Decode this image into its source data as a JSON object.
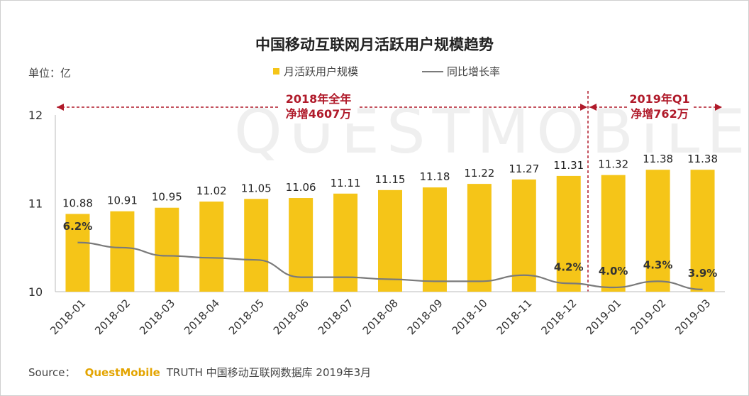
{
  "chart_data": {
    "type": "bar",
    "title": "中国移动互联网月活跃用户规模趋势",
    "unit_label": "单位：亿",
    "categories": [
      "2018-01",
      "2018-02",
      "2018-03",
      "2018-04",
      "2018-05",
      "2018-06",
      "2018-07",
      "2018-08",
      "2018-09",
      "2018-10",
      "2018-11",
      "2018-12",
      "2019-01",
      "2019-02",
      "2019-03"
    ],
    "series": [
      {
        "name": "月活跃用户规模",
        "type": "bar",
        "color": "#F5C518",
        "values": [
          10.88,
          10.91,
          10.95,
          11.02,
          11.05,
          11.06,
          11.11,
          11.15,
          11.18,
          11.22,
          11.27,
          11.31,
          11.32,
          11.38,
          11.38
        ],
        "labels": [
          "10.88",
          "10.91",
          "10.95",
          "11.02",
          "11.05",
          "11.06",
          "11.11",
          "11.15",
          "11.18",
          "11.22",
          "11.27",
          "11.31",
          "11.32",
          "11.38",
          "11.38"
        ]
      },
      {
        "name": "同比增长率",
        "type": "line",
        "color": "#7a7a7a",
        "values_pct": [
          6.2,
          5.95,
          5.55,
          5.45,
          5.35,
          4.5,
          4.5,
          4.4,
          4.3,
          4.3,
          4.6,
          4.2,
          4.0,
          4.3,
          3.9
        ],
        "labeled_points": [
          {
            "index": 0,
            "label": "6.2%"
          },
          {
            "index": 11,
            "label": "4.2%"
          },
          {
            "index": 12,
            "label": "4.0%"
          },
          {
            "index": 13,
            "label": "4.3%"
          },
          {
            "index": 14,
            "label": "3.9%"
          }
        ]
      }
    ],
    "ylim": [
      10,
      12
    ],
    "yticks": [
      "10",
      "11",
      "12"
    ],
    "legend_position": "top-center",
    "annotations": [
      {
        "line1": "2018年全年",
        "line2": "净增4607万",
        "span": [
          0,
          11
        ]
      },
      {
        "line1": "2019年Q1",
        "line2": "净增762万",
        "span": [
          12,
          14
        ]
      }
    ],
    "colors": {
      "annotation": "#b01a2a",
      "axis": "#999999"
    }
  },
  "watermark": "QUESTMOBILE",
  "source": {
    "prefix": "Source：",
    "brand": "QuestMobile",
    "rest": "TRUTH 中国移动互联网数据库 2019年3月"
  }
}
